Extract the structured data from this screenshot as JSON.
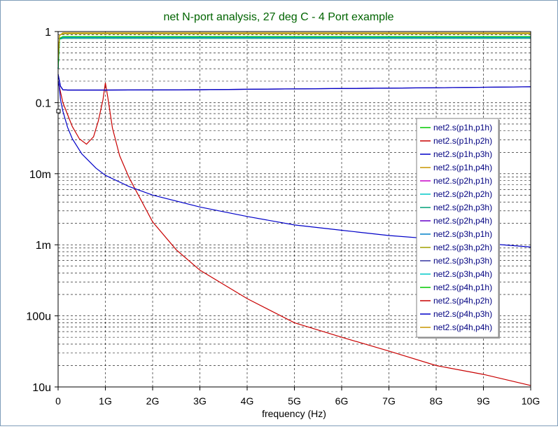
{
  "chart_data": {
    "type": "line",
    "title": "net N-port analysis, 27 deg C - 4 Port example",
    "xlabel": "frequency (Hz)",
    "xlim": [
      0,
      10
    ],
    "ylim": [
      1e-05,
      1
    ],
    "yscale": "log",
    "grid": true,
    "legend_position": "right",
    "x_ticks": [
      {
        "v": 0,
        "label": "0"
      },
      {
        "v": 1,
        "label": "1G"
      },
      {
        "v": 2,
        "label": "2G"
      },
      {
        "v": 3,
        "label": "3G"
      },
      {
        "v": 4,
        "label": "4G"
      },
      {
        "v": 5,
        "label": "5G"
      },
      {
        "v": 6,
        "label": "6G"
      },
      {
        "v": 7,
        "label": "7G"
      },
      {
        "v": 8,
        "label": "8G"
      },
      {
        "v": 9,
        "label": "9G"
      },
      {
        "v": 10,
        "label": "10G"
      }
    ],
    "y_ticks": [
      {
        "v": 1,
        "label": "1"
      },
      {
        "v": 0.1,
        "label": "0.1"
      },
      {
        "v": 0.01,
        "label": "10m"
      },
      {
        "v": 0.001,
        "label": "1m"
      },
      {
        "v": 0.0001,
        "label": "100u"
      },
      {
        "v": 1e-05,
        "label": "10u"
      }
    ],
    "series": [
      {
        "name": "net2.s(p1h,p1h)",
        "color": "#00c800",
        "x": [
          0,
          0.03,
          0.1,
          10
        ],
        "y": [
          0.3,
          0.8,
          0.85,
          0.85
        ]
      },
      {
        "name": "net2.s(p1h,p2h)",
        "color": "#c80000",
        "x": [
          0,
          0.1,
          0.2,
          0.3,
          0.45,
          0.6,
          0.75,
          0.85,
          0.95,
          1.0,
          1.05,
          1.15,
          1.3,
          1.5,
          2.0,
          2.5,
          3.0,
          4.0,
          5.0,
          6.0,
          7.0,
          8.0,
          9.0,
          10.0
        ],
        "y": [
          0.2,
          0.1,
          0.068,
          0.046,
          0.031,
          0.026,
          0.033,
          0.055,
          0.11,
          0.19,
          0.12,
          0.044,
          0.018,
          0.0088,
          0.0021,
          0.00085,
          0.00044,
          0.000175,
          8e-05,
          5e-05,
          3.2e-05,
          2e-05,
          1.5e-05,
          1.05e-05
        ]
      },
      {
        "name": "net2.s(p1h,p3h)",
        "color": "#0000c8",
        "x": [
          0,
          0.02,
          0.05,
          0.1,
          0.2,
          0.3,
          0.5,
          0.8,
          1.0,
          1.5,
          2.0,
          3.0,
          4.0,
          5.0,
          6.0,
          7.0,
          8.0,
          9.0,
          10.0
        ],
        "y": [
          0.2,
          0.18,
          0.11,
          0.076,
          0.045,
          0.031,
          0.019,
          0.012,
          0.0095,
          0.0066,
          0.005,
          0.0034,
          0.0025,
          0.0019,
          0.0016,
          0.00135,
          0.0012,
          0.00105,
          0.00093
        ]
      },
      {
        "name": "net2.s(p1h,p4h)",
        "color": "#c89600",
        "x": [
          0,
          0.03,
          0.1,
          10
        ],
        "y": [
          0.4,
          0.88,
          0.95,
          0.95
        ]
      },
      {
        "name": "net2.s(p2h,p1h)",
        "color": "#c800c8",
        "x": [
          0,
          10
        ],
        "y": [
          0.19,
          0.19
        ],
        "hidden": true
      },
      {
        "name": "net2.s(p2h,p2h)",
        "color": "#00c8c8",
        "x": [
          0,
          0.03,
          0.1,
          10
        ],
        "y": [
          0.3,
          0.8,
          0.83,
          0.83
        ]
      },
      {
        "name": "net2.s(p2h,p3h)",
        "color": "#00a078",
        "x": [
          0,
          0.03,
          0.1,
          10
        ],
        "y": [
          0.3,
          0.78,
          0.8,
          0.8
        ]
      },
      {
        "name": "net2.s(p2h,p4h)",
        "color": "#6400c8",
        "x": [
          0,
          0.05,
          0.1,
          0.2,
          1,
          3,
          5,
          8,
          10
        ],
        "y": [
          0.25,
          0.17,
          0.152,
          0.15,
          0.15,
          0.152,
          0.156,
          0.162,
          0.167
        ]
      },
      {
        "name": "net2.s(p3h,p1h)",
        "color": "#0080c8",
        "x": [
          0,
          0.03,
          0.1,
          10
        ],
        "y": [
          0.3,
          0.8,
          0.82,
          0.82
        ]
      },
      {
        "name": "net2.s(p3h,p2h)",
        "color": "#a0a000",
        "x": [
          0,
          0.03,
          0.1,
          10
        ],
        "y": [
          0.4,
          0.88,
          0.93,
          0.93
        ]
      },
      {
        "name": "net2.s(p3h,p3h)",
        "color": "#3232a0",
        "x": [
          0,
          0.05,
          0.1,
          0.2,
          1,
          3,
          5,
          8,
          10
        ],
        "y": [
          0.25,
          0.17,
          0.152,
          0.15,
          0.15,
          0.152,
          0.156,
          0.162,
          0.167
        ]
      },
      {
        "name": "net2.s(p3h,p4h)",
        "color": "#00c8c8",
        "x": [
          0,
          0.03,
          0.1,
          10
        ],
        "y": [
          0.3,
          0.8,
          0.84,
          0.84
        ]
      },
      {
        "name": "net2.s(p4h,p1h)",
        "color": "#00c800",
        "x": [
          0,
          0.03,
          0.1,
          10
        ],
        "y": [
          0.3,
          0.8,
          0.85,
          0.85
        ]
      },
      {
        "name": "net2.s(p4h,p2h)",
        "color": "#c80000",
        "x": [
          0,
          10
        ],
        "y": [
          0.19,
          0.19
        ],
        "hidden": true
      },
      {
        "name": "net2.s(p4h,p3h)",
        "color": "#0000c8",
        "x": [
          0,
          0.05,
          0.1,
          0.2,
          1,
          3,
          5,
          8,
          10
        ],
        "y": [
          0.25,
          0.17,
          0.152,
          0.15,
          0.15,
          0.152,
          0.156,
          0.162,
          0.167
        ]
      },
      {
        "name": "net2.s(p4h,p4h)",
        "color": "#c89600",
        "x": [
          0,
          0.03,
          0.1,
          10
        ],
        "y": [
          0.4,
          0.88,
          0.96,
          0.96
        ]
      }
    ]
  }
}
